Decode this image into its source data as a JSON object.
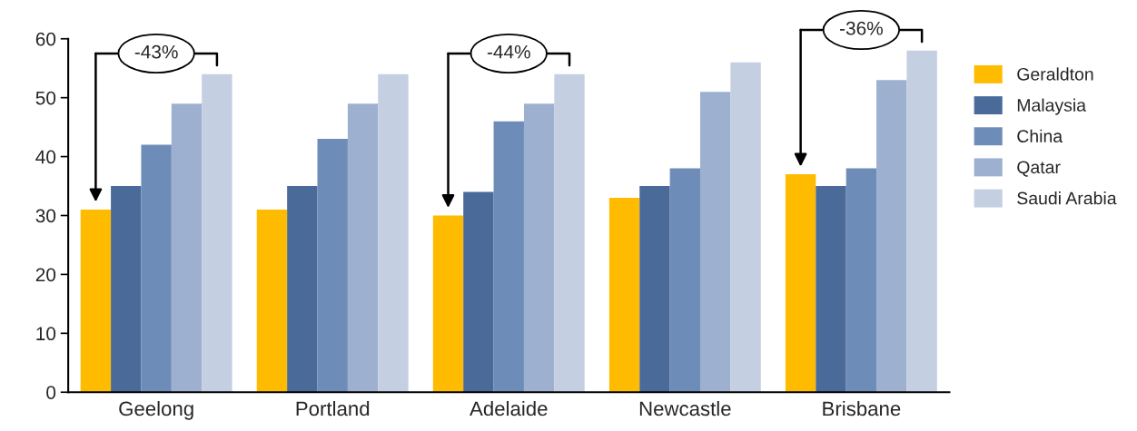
{
  "chart_data": {
    "type": "bar",
    "categories": [
      "Geelong",
      "Portland",
      "Adelaide",
      "Newcastle",
      "Brisbane"
    ],
    "series": [
      {
        "name": "Geraldton",
        "color": "#ffbb00",
        "values": [
          31,
          31,
          30,
          33,
          37
        ]
      },
      {
        "name": "Malaysia",
        "color": "#4a6a9a",
        "values": [
          35,
          35,
          34,
          35,
          35
        ]
      },
      {
        "name": "China",
        "color": "#6e8cb8",
        "values": [
          42,
          43,
          46,
          38,
          38
        ]
      },
      {
        "name": "Qatar",
        "color": "#9db0cf",
        "values": [
          49,
          49,
          49,
          51,
          53
        ]
      },
      {
        "name": "Saudi Arabia",
        "color": "#c4cfe2",
        "values": [
          54,
          54,
          54,
          56,
          58
        ]
      }
    ],
    "ylim": [
      0,
      60
    ],
    "yticks": [
      0,
      10,
      20,
      30,
      40,
      50,
      60
    ],
    "legend": "right",
    "grid": false,
    "annotations": [
      "-43%",
      "-44%",
      "-36%"
    ]
  }
}
